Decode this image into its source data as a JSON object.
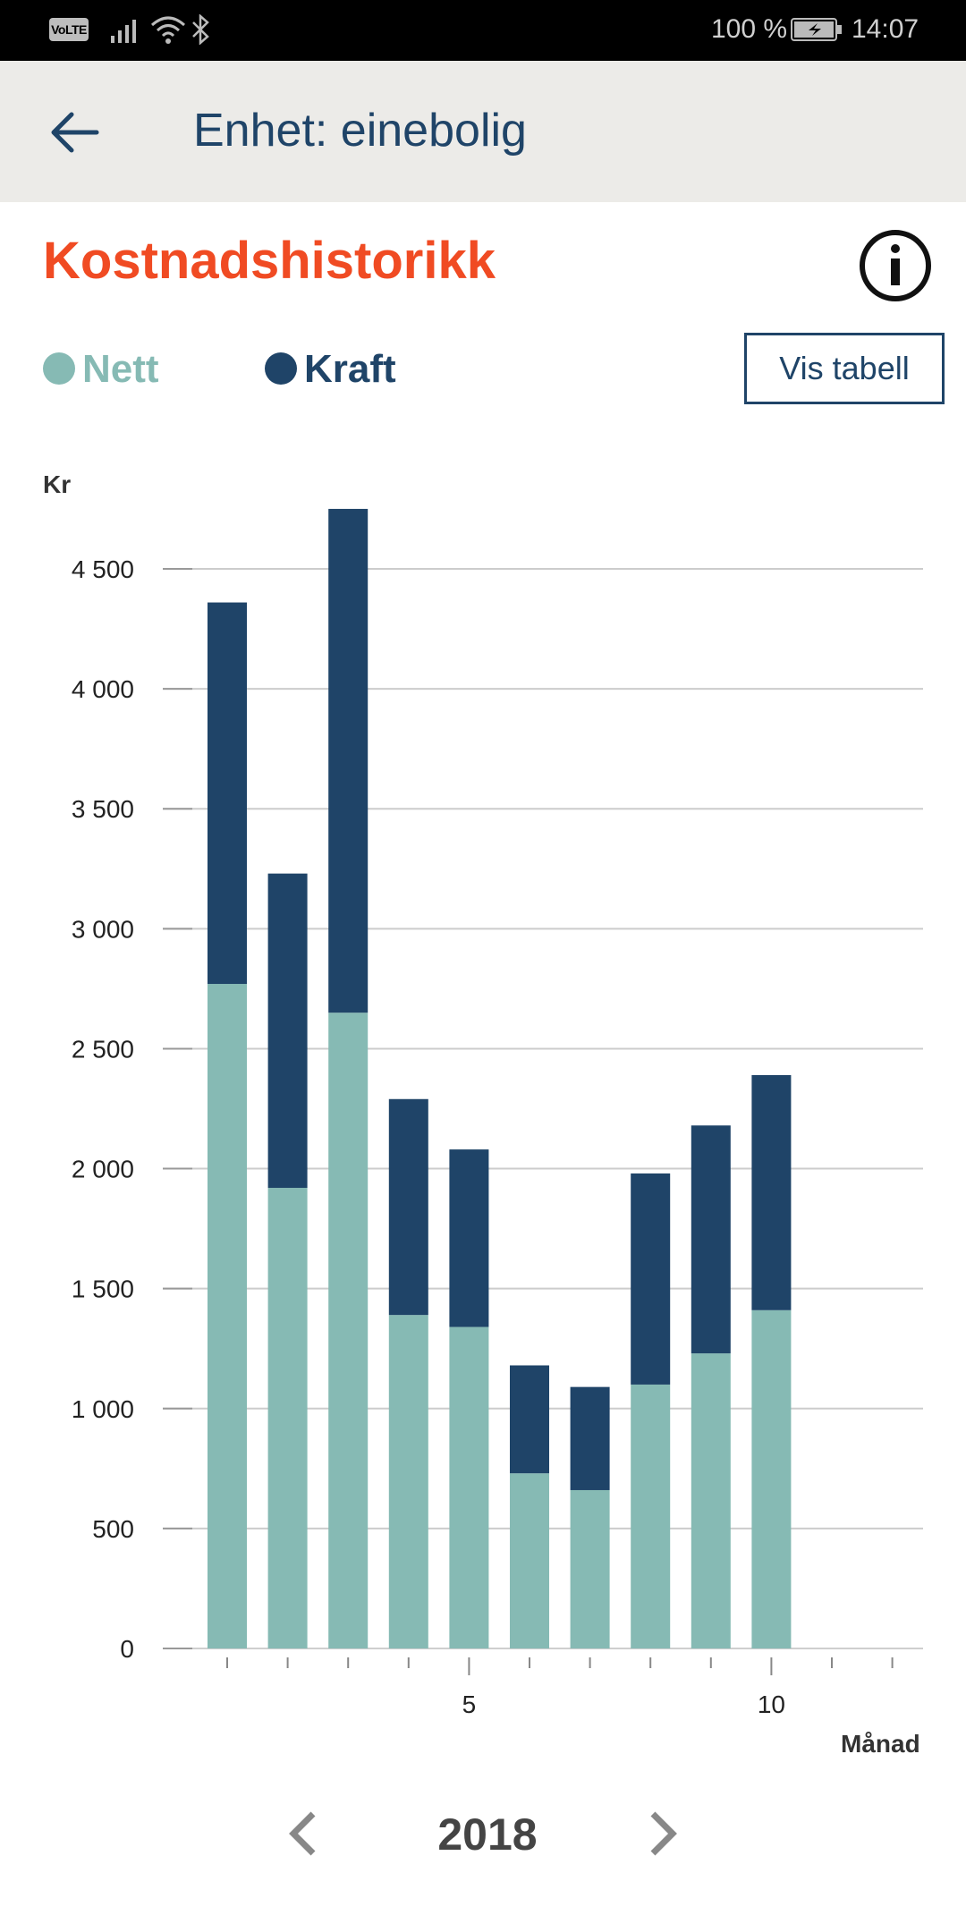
{
  "status_bar": {
    "volte": "VoLTE",
    "battery_percent": "100 %",
    "time": "14:07",
    "icons": [
      "signal-icon",
      "wifi-icon",
      "bluetooth-icon",
      "battery-charging-icon"
    ]
  },
  "app_bar": {
    "title": "Enhet: einebolig",
    "back_icon": "arrow-left-icon"
  },
  "section": {
    "title": "Kostnadshistorikk",
    "info_icon": "info-icon",
    "table_button_label": "Vis tabell"
  },
  "legend": {
    "nett_label": "Nett",
    "kraft_label": "Kraft"
  },
  "colors": {
    "nett": "#86bab4",
    "kraft": "#1f4468",
    "title_accent": "#f04b23"
  },
  "chart_data": {
    "type": "bar",
    "stacked": true,
    "ylabel": "Kr",
    "xlabel": "Månad",
    "ylim": [
      0,
      4750
    ],
    "yticks": [
      0,
      500,
      1000,
      1500,
      2000,
      2500,
      3000,
      3500,
      4000,
      4500
    ],
    "ytick_labels": [
      "0",
      "500",
      "1 000",
      "1 500",
      "2 000",
      "2 500",
      "3 000",
      "3 500",
      "4 000",
      "4 500"
    ],
    "categories": [
      1,
      2,
      3,
      4,
      5,
      6,
      7,
      8,
      9,
      10,
      11,
      12
    ],
    "xtick_labels": {
      "5": "5",
      "10": "10"
    },
    "series": [
      {
        "name": "Nett",
        "values": [
          2770,
          1920,
          2650,
          1390,
          1340,
          730,
          660,
          1100,
          1230,
          1410,
          null,
          null
        ]
      },
      {
        "name": "Kraft",
        "values": [
          1590,
          1310,
          2100,
          900,
          740,
          450,
          430,
          880,
          950,
          980,
          null,
          null
        ]
      }
    ],
    "grid": true
  },
  "year_nav": {
    "year": "2018",
    "prev_icon": "chevron-left-icon",
    "next_icon": "chevron-right-icon"
  }
}
